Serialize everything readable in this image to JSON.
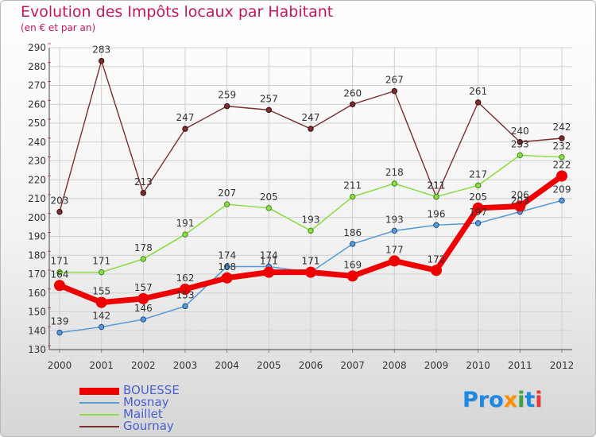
{
  "title": "Evolution des Impôts locaux par Habitant",
  "subtitle": "(en € et par an)",
  "logo": {
    "text": "Proxiti",
    "letters": [
      "P",
      "r",
      "o",
      "x",
      "i",
      "t",
      "i"
    ],
    "colors": [
      "#1e88e5",
      "#1e88e5",
      "#1e88e5",
      "#ff8f00",
      "#43a047",
      "#1e88e5",
      "#e53935"
    ]
  },
  "chart_data": {
    "type": "line",
    "title": "Evolution des Impôts locaux par Habitant",
    "subtitle": "(en € et par an)",
    "xlabel": "",
    "ylabel": "",
    "ylim": [
      130,
      290
    ],
    "yticks": [
      130,
      140,
      150,
      160,
      170,
      180,
      190,
      200,
      210,
      220,
      230,
      240,
      250,
      260,
      270,
      280,
      290
    ],
    "grid": true,
    "legend": "bottom-left",
    "categories": [
      "2000",
      "2001",
      "2002",
      "2003",
      "2004",
      "2005",
      "2006",
      "2007",
      "2008",
      "2009",
      "2010",
      "2011",
      "2012"
    ],
    "series": [
      {
        "name": "BOUESSE",
        "color": "#ee0000",
        "values": [
          164,
          155,
          157,
          162,
          168,
          171,
          171,
          169,
          177,
          172,
          205,
          206,
          222
        ]
      },
      {
        "name": "Mosnay",
        "color": "#5b9bd5",
        "values": [
          139,
          142,
          146,
          153,
          174,
          174,
          171,
          186,
          193,
          196,
          197,
          203,
          209
        ]
      },
      {
        "name": "Maillet",
        "color": "#8edc4c",
        "values": [
          171,
          171,
          178,
          191,
          207,
          205,
          193,
          211,
          218,
          211,
          217,
          233,
          232
        ]
      },
      {
        "name": "Gournay",
        "color": "#7a2e2e",
        "values": [
          203,
          283,
          213,
          247,
          259,
          257,
          247,
          260,
          267,
          211,
          261,
          240,
          242
        ]
      }
    ]
  }
}
